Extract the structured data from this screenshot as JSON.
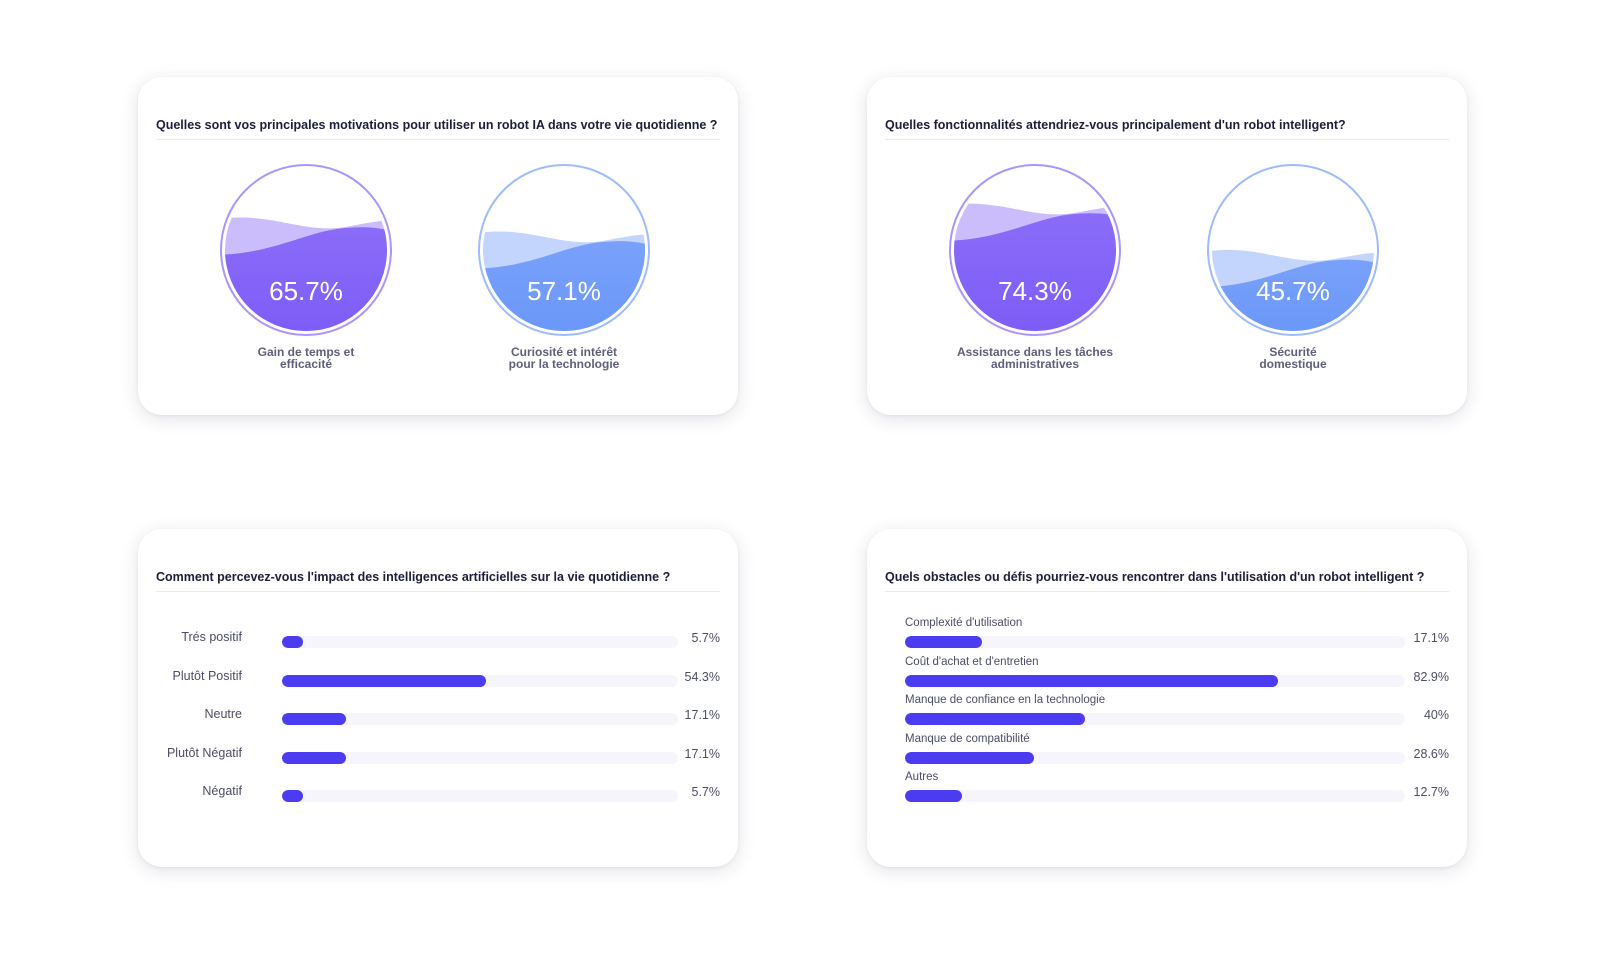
{
  "cards": [
    {
      "title": "Quelles sont vos principales motivations pour utiliser un robot IA dans votre vie quotidienne ?",
      "type": "gauge"
    },
    {
      "title": "Quelles fonctionnalités attendriez-vous principalement d'un robot intelligent?",
      "type": "gauge"
    },
    {
      "title": "Comment percevez-vous l'impact des intelligences artificielles sur la vie quotidienne ?",
      "type": "bar"
    },
    {
      "title": "Quels obstacles ou défis pourriez-vous rencontrer dans l'utilisation d'un robot intelligent ?",
      "type": "bar"
    }
  ],
  "chart_data": [
    {
      "type": "gauge",
      "title": "Quelles sont vos principales motivations pour utiliser un robot IA dans votre vie quotidienne ?",
      "items": [
        {
          "label_lines": [
            "Gain de temps et",
            "efficacité"
          ],
          "value": 65.7,
          "display": "65.7%",
          "color": "#7d5cf7"
        },
        {
          "label_lines": [
            "Curiosité et intérêt",
            "pour la technologie"
          ],
          "value": 57.1,
          "display": "57.1%",
          "color": "#6a97f9"
        }
      ]
    },
    {
      "type": "gauge",
      "title": "Quelles fonctionnalités attendriez-vous principalement d'un robot intelligent?",
      "items": [
        {
          "label_lines": [
            "Assistance dans les tâches",
            "administratives"
          ],
          "value": 74.3,
          "display": "74.3%",
          "color": "#7d5cf7"
        },
        {
          "label_lines": [
            "Sécurité",
            "domestique"
          ],
          "value": 45.7,
          "display": "45.7%",
          "color": "#6a97f9"
        }
      ]
    },
    {
      "type": "bar",
      "orientation": "horizontal",
      "title": "Comment percevez-vous l'impact des intelligences artificielles sur la vie quotidienne ?",
      "categories": [
        "Trés positif",
        "Plutôt Positif",
        "Neutre",
        "Plutôt Négatif",
        "Négatif"
      ],
      "values": [
        5.7,
        54.3,
        17.1,
        17.1,
        5.7
      ],
      "value_labels": [
        "5.7%",
        "54.3%",
        "17.1%",
        "17.1%",
        "5.7%"
      ],
      "xlim": [
        0,
        100
      ],
      "bar_color": "#4b3cf2"
    },
    {
      "type": "bar",
      "orientation": "horizontal",
      "title": "Quels obstacles ou défis pourriez-vous rencontrer dans l'utilisation d'un robot intelligent ?",
      "categories": [
        "Complexité d'utilisation",
        "Coût d'achat et d'entretien",
        "Manque de confiance en la technologie",
        "Manque de compatibilité",
        "Autres"
      ],
      "values": [
        17.1,
        82.9,
        40,
        28.6,
        12.7
      ],
      "value_labels": [
        "17.1%",
        "82.9%",
        "40%",
        "28.6%",
        "12.7%"
      ],
      "xlim": [
        0,
        100
      ],
      "bar_color": "#4b3cf2"
    }
  ]
}
